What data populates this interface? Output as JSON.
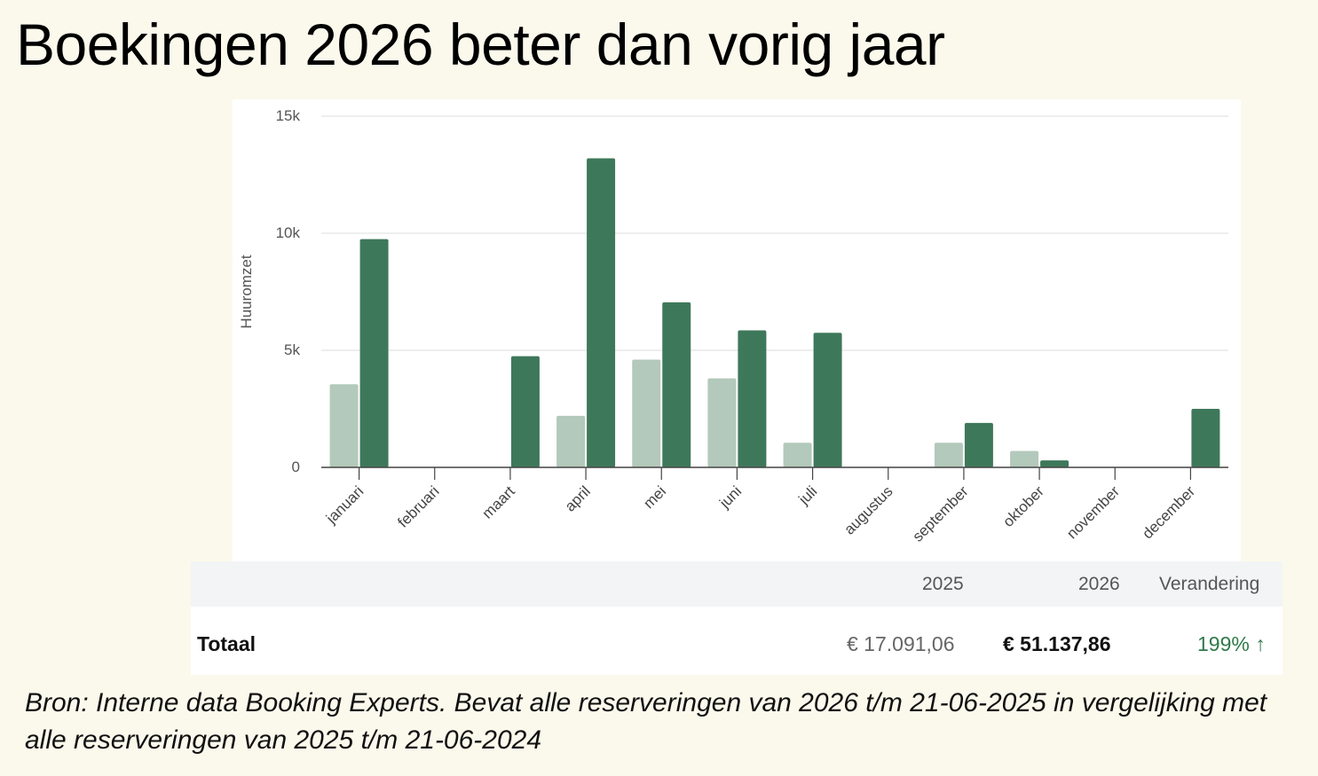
{
  "title": "Boekingen 2026 beter dan vorig jaar",
  "colors": {
    "series_2025": "#b3c9bb",
    "series_2026": "#3e785a",
    "change": "#2f7a4a",
    "background": "#fbf9ec"
  },
  "chart_data": {
    "type": "bar",
    "title": "",
    "xlabel": "",
    "ylabel": "Huuromzet",
    "ylim": [
      0,
      15000
    ],
    "yticks": [
      0,
      5000,
      10000,
      15000
    ],
    "ytick_labels": [
      "0",
      "5k",
      "10k",
      "15k"
    ],
    "grid": true,
    "categories": [
      "januari",
      "februari",
      "maart",
      "april",
      "mei",
      "juni",
      "juli",
      "augustus",
      "september",
      "oktober",
      "november",
      "december"
    ],
    "series": [
      {
        "name": "2025",
        "values": [
          3550,
          0,
          0,
          2200,
          4600,
          3800,
          1050,
          0,
          1050,
          700,
          0,
          0
        ]
      },
      {
        "name": "2026",
        "values": [
          9750,
          0,
          4750,
          13200,
          7050,
          5850,
          5750,
          0,
          1900,
          300,
          0,
          2500
        ]
      }
    ]
  },
  "table": {
    "headers": {
      "label": "",
      "y2025": "2025",
      "y2026": "2026",
      "change": "Verandering"
    },
    "row": {
      "label": "Totaal",
      "y2025": "€ 17.091,06",
      "y2026": "€ 51.137,86",
      "change": "199% ↑"
    }
  },
  "source": "Bron: Interne data Booking Experts. Bevat alle reserveringen van 2026 t/m 21-06-2025 in vergelijking met alle reserveringen van 2025 t/m 21-06-2024"
}
